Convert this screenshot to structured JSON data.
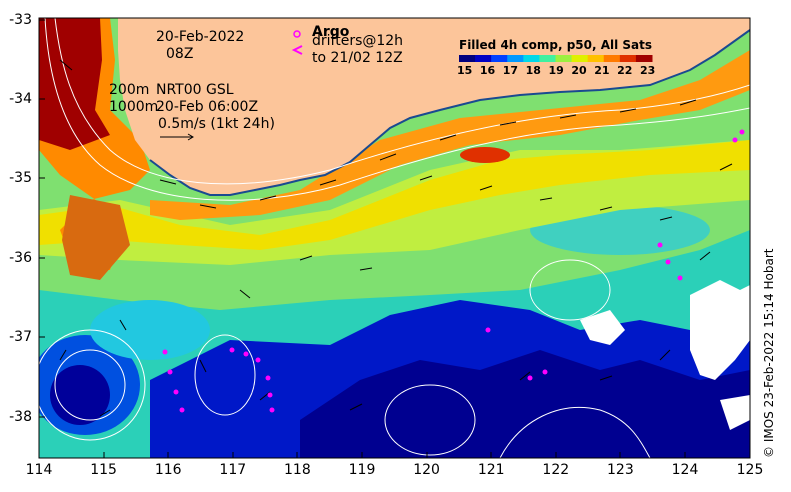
{
  "header": {
    "date_line1": "20-Feb-2022",
    "date_line2": "08Z",
    "argo_label": "Argo",
    "drifters_label": "drifters@12h",
    "drifters_until": "to 21/02 12Z"
  },
  "contour_legend": {
    "contour_200": "200m",
    "contour_1000": "1000m",
    "source": "NRT00 GSL",
    "timestamp": "20-Feb 06:00Z",
    "velocity_scale": "0.5m/s (1kt 24h)"
  },
  "colorbar": {
    "title": "Filled 4h comp, p50, All Sats",
    "ticks": [
      "15",
      "16",
      "17",
      "18",
      "19",
      "20",
      "21",
      "22",
      "23"
    ],
    "colors": [
      "#00007f",
      "#0000c4",
      "#0040ff",
      "#0099ff",
      "#00d8e8",
      "#40f0a0",
      "#9cf040",
      "#e0f000",
      "#ffc000",
      "#ff7a00",
      "#e03000",
      "#a00000"
    ]
  },
  "axes": {
    "y_labels": [
      "-33",
      "-34",
      "-35",
      "-36",
      "-37",
      "-38"
    ],
    "x_labels": [
      "114",
      "115",
      "116",
      "117",
      "118",
      "119",
      "120",
      "121",
      "122",
      "123",
      "124",
      "125"
    ]
  },
  "credit": "© IMOS 23-Feb-2022 15:14 Hobart",
  "colors": {
    "land": "#fcc59a",
    "argo": "#ff00ff",
    "contour": "#ffffff",
    "arrow": "#000000"
  }
}
